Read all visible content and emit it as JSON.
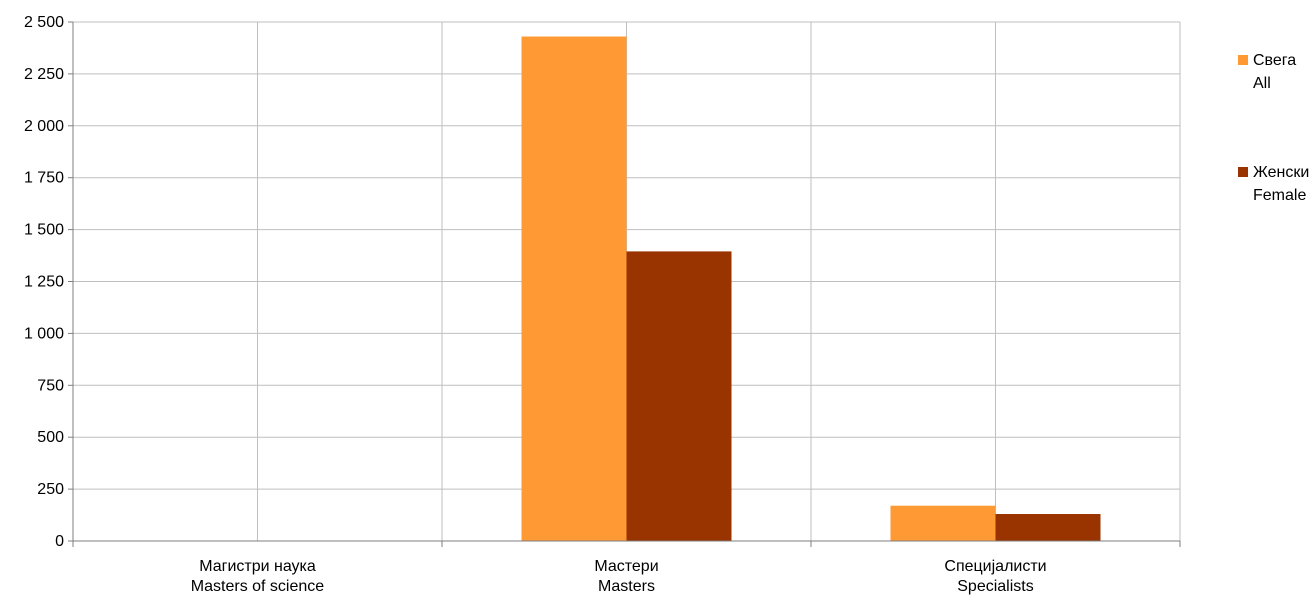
{
  "chart_data": {
    "type": "bar",
    "categories": [
      [
        "Магистри наука",
        "Masters of science"
      ],
      [
        "Мастери",
        "Masters"
      ],
      [
        "Специјалисти",
        "Specialists"
      ]
    ],
    "series": [
      {
        "name": [
          "Свега",
          "All"
        ],
        "values": [
          0,
          2430,
          170
        ],
        "color": "#FF9933"
      },
      {
        "name": [
          "Женски",
          "Female"
        ],
        "values": [
          0,
          1395,
          130
        ],
        "color": "#993300"
      }
    ],
    "ylim": [
      0,
      2500
    ],
    "yticks": [
      0,
      250,
      500,
      750,
      1000,
      1250,
      1500,
      1750,
      2000,
      2250,
      2500
    ],
    "ytick_labels": [
      "0",
      "250",
      "500",
      "750",
      "1 000",
      "1 250",
      "1 500",
      "1 750",
      "2 000",
      "2 250",
      "2 500"
    ],
    "grid": true,
    "legend_position": "right",
    "title": "",
    "xlabel": "",
    "ylabel": ""
  }
}
